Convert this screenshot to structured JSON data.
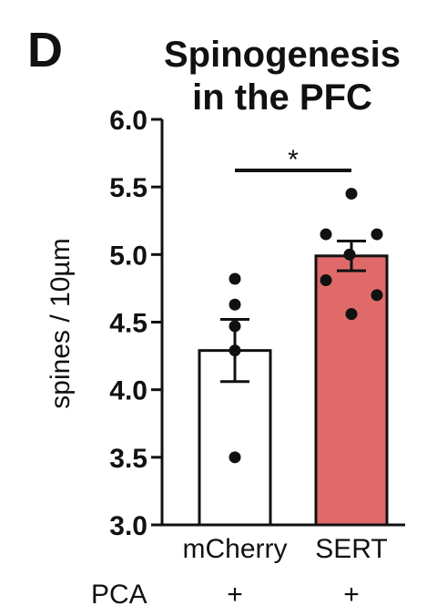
{
  "panel_label": "D",
  "chart_data": {
    "type": "bar",
    "title_lines": [
      "Spinogenesis",
      "in  the PFC"
    ],
    "ylabel": "spines / 10µm",
    "ylim": [
      3.0,
      6.0
    ],
    "yticks": [
      "3.0",
      "3.5",
      "4.0",
      "4.5",
      "5.0",
      "5.5",
      "6.0"
    ],
    "categories": [
      "mCherry",
      "SERT"
    ],
    "values": [
      4.29,
      4.99
    ],
    "errors": [
      0.23,
      0.11
    ],
    "points": [
      [
        4.82,
        4.63,
        4.47,
        4.29,
        3.5
      ],
      [
        5.45,
        5.15,
        5.15,
        5.0,
        4.81,
        4.7,
        4.56
      ]
    ],
    "bar_colors": [
      "#ffffff",
      "#e06a6a"
    ],
    "bar_edge_color": "#111111",
    "point_color": "#111111",
    "significance": {
      "groups": [
        0,
        1
      ],
      "label": "*"
    },
    "condition_row": {
      "label": "PCA",
      "values": [
        "+",
        "+"
      ]
    },
    "grid": false,
    "legend": "none"
  }
}
